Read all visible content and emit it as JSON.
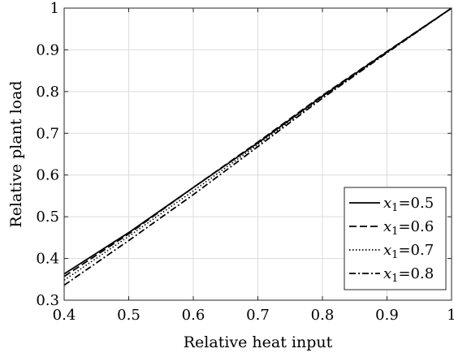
{
  "chart_data": {
    "type": "line",
    "xlabel": "Relative heat input",
    "ylabel": "Relative plant load",
    "xlim": [
      0.4,
      1.0
    ],
    "ylim": [
      0.3,
      1.0
    ],
    "xticks": [
      "0.4",
      "0.5",
      "0.6",
      "0.7",
      "0.8",
      "0.9",
      "1"
    ],
    "yticks": [
      "0.3",
      "0.4",
      "0.5",
      "0.6",
      "0.7",
      "0.8",
      "0.9",
      "1"
    ],
    "grid": true,
    "legend_position": "bottom-right",
    "series": [
      {
        "name": "x1=0.5",
        "label_var": "x",
        "label_sub": "1",
        "label_val": "=0.5",
        "dash": "solid",
        "x": [
          0.4,
          0.5,
          0.6,
          0.7,
          0.8,
          0.9,
          1.0
        ],
        "y": [
          0.363,
          0.462,
          0.57,
          0.677,
          0.789,
          0.895,
          1.0
        ]
      },
      {
        "name": "x1=0.6",
        "label_var": "x",
        "label_sub": "1",
        "label_val": "=0.6",
        "dash": "dashed",
        "x": [
          0.4,
          0.5,
          0.6,
          0.7,
          0.8,
          0.9,
          1.0
        ],
        "y": [
          0.357,
          0.459,
          0.57,
          0.679,
          0.791,
          0.896,
          1.0
        ]
      },
      {
        "name": "x1=0.7",
        "label_var": "x",
        "label_sub": "1",
        "label_val": "=0.7",
        "dash": "dotted",
        "x": [
          0.4,
          0.5,
          0.6,
          0.7,
          0.8,
          0.9,
          1.0
        ],
        "y": [
          0.348,
          0.453,
          0.562,
          0.673,
          0.786,
          0.894,
          1.0
        ]
      },
      {
        "name": "x1=0.8",
        "label_var": "x",
        "label_sub": "1",
        "label_val": "=0.8",
        "dash": "dashdot",
        "x": [
          0.4,
          0.5,
          0.6,
          0.7,
          0.8,
          0.9,
          1.0
        ],
        "y": [
          0.336,
          0.443,
          0.553,
          0.668,
          0.784,
          0.893,
          1.0
        ]
      }
    ]
  }
}
